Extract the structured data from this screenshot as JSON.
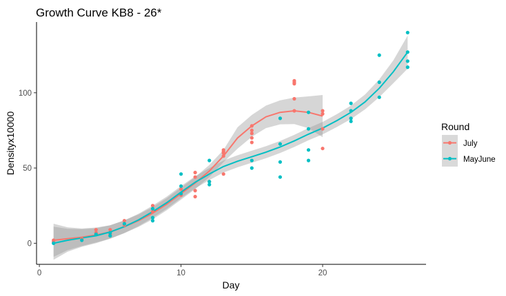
{
  "chart_data": {
    "type": "scatter",
    "title": "Growth Curve KB8 - 26*",
    "xlabel": "Day",
    "ylabel": "Densityx10000",
    "xlim": [
      -0.2,
      27.3
    ],
    "ylim": [
      -14,
      147
    ],
    "x_ticks": [
      0,
      10,
      20
    ],
    "y_ticks": [
      0,
      50,
      100
    ],
    "grid": false,
    "legend": {
      "title": "Round",
      "placement": "right",
      "entries": [
        "July",
        "MayJune"
      ]
    },
    "series": [
      {
        "name": "July",
        "color": "#F8766D",
        "points": [
          [
            1,
            1
          ],
          [
            1,
            2
          ],
          [
            3,
            3
          ],
          [
            4,
            7
          ],
          [
            4,
            9
          ],
          [
            5,
            6
          ],
          [
            5,
            9
          ],
          [
            6,
            12
          ],
          [
            6,
            15
          ],
          [
            8,
            17
          ],
          [
            8,
            21
          ],
          [
            8,
            25
          ],
          [
            10,
            32
          ],
          [
            10,
            36
          ],
          [
            11,
            31
          ],
          [
            11,
            35
          ],
          [
            11,
            44
          ],
          [
            11,
            47
          ],
          [
            12,
            41
          ],
          [
            13,
            46
          ],
          [
            13,
            58
          ],
          [
            13,
            60
          ],
          [
            13,
            61
          ],
          [
            13,
            62
          ],
          [
            15,
            67
          ],
          [
            15,
            70
          ],
          [
            15,
            73
          ],
          [
            15,
            75
          ],
          [
            15,
            78
          ],
          [
            18,
            88
          ],
          [
            18,
            96
          ],
          [
            18,
            106
          ],
          [
            18,
            107
          ],
          [
            18,
            108
          ],
          [
            20,
            63
          ],
          [
            20,
            76
          ],
          [
            20,
            86
          ],
          [
            20,
            88
          ]
        ],
        "smooth": [
          [
            1,
            2
          ],
          [
            2,
            3
          ],
          [
            3,
            4
          ],
          [
            4,
            5.5
          ],
          [
            5,
            7.5
          ],
          [
            6,
            11
          ],
          [
            7,
            15
          ],
          [
            8,
            20
          ],
          [
            9,
            26
          ],
          [
            10,
            33
          ],
          [
            11,
            40
          ],
          [
            12,
            48
          ],
          [
            13,
            58
          ],
          [
            14,
            70
          ],
          [
            15,
            78
          ],
          [
            16,
            84
          ],
          [
            17,
            87
          ],
          [
            18,
            88
          ],
          [
            19,
            87
          ],
          [
            20,
            84.5
          ]
        ]
      },
      {
        "name": "MayJune",
        "color": "#00BFC4",
        "points": [
          [
            1,
            0
          ],
          [
            3,
            2
          ],
          [
            4,
            6
          ],
          [
            5,
            5
          ],
          [
            5,
            7
          ],
          [
            6,
            13
          ],
          [
            8,
            15
          ],
          [
            8,
            17
          ],
          [
            8,
            23
          ],
          [
            10,
            33
          ],
          [
            10,
            38
          ],
          [
            10,
            46
          ],
          [
            12,
            39
          ],
          [
            12,
            41
          ],
          [
            12,
            55
          ],
          [
            15,
            50
          ],
          [
            15,
            55
          ],
          [
            17,
            44
          ],
          [
            17,
            54
          ],
          [
            17,
            66
          ],
          [
            17,
            83
          ],
          [
            19,
            55
          ],
          [
            19,
            62
          ],
          [
            19,
            76
          ],
          [
            19,
            87
          ],
          [
            22,
            81
          ],
          [
            22,
            83
          ],
          [
            22,
            88
          ],
          [
            22,
            93
          ],
          [
            24,
            97
          ],
          [
            24,
            107
          ],
          [
            24,
            125
          ],
          [
            26,
            117
          ],
          [
            26,
            121
          ],
          [
            26,
            127
          ],
          [
            26,
            140
          ]
        ],
        "smooth": [
          [
            1,
            0
          ],
          [
            2,
            2
          ],
          [
            3,
            3.5
          ],
          [
            4,
            5
          ],
          [
            5,
            7.5
          ],
          [
            6,
            11
          ],
          [
            7,
            15.5
          ],
          [
            8,
            21
          ],
          [
            9,
            27
          ],
          [
            10,
            34
          ],
          [
            11,
            40.5
          ],
          [
            12,
            46
          ],
          [
            13,
            51
          ],
          [
            14,
            54.5
          ],
          [
            15,
            57.5
          ],
          [
            16,
            60.5
          ],
          [
            17,
            64
          ],
          [
            18,
            68
          ],
          [
            19,
            72.5
          ],
          [
            20,
            76.5
          ],
          [
            21,
            81.5
          ],
          [
            22,
            87
          ],
          [
            23,
            94
          ],
          [
            24,
            103
          ],
          [
            25,
            114
          ],
          [
            26,
            127
          ]
        ]
      }
    ]
  }
}
